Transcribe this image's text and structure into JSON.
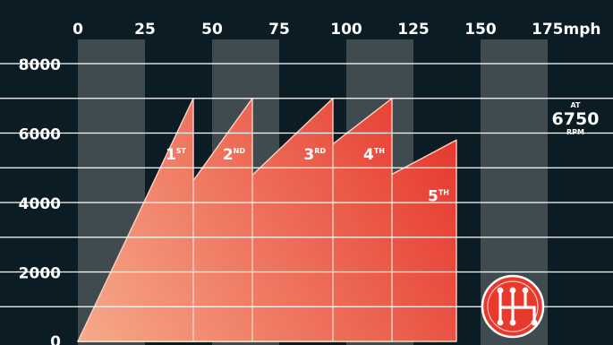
{
  "colors": {
    "background": "#0b1c24",
    "band": "#4a5358",
    "gridline": "#ffffff",
    "fill_light": "#f6a98a",
    "fill_dark": "#e63a2f",
    "text": "#ffffff"
  },
  "chart_data": {
    "type": "area",
    "title": "",
    "xlabel": "",
    "ylabel": "",
    "x_unit": "mph",
    "xlim": [
      0,
      175
    ],
    "ylim": [
      0,
      8000
    ],
    "x_ticks": [
      "0",
      "25",
      "50",
      "75",
      "100",
      "125",
      "150",
      "175mph"
    ],
    "x_tick_values": [
      0,
      25,
      50,
      75,
      100,
      125,
      150,
      175
    ],
    "y_ticks": [
      "8000",
      "6000",
      "4000",
      "2000",
      "0"
    ],
    "y_tick_values": [
      8000,
      6000,
      4000,
      2000,
      0
    ],
    "grid": true,
    "gridline_values": [
      8000,
      7000,
      6000,
      5000,
      4000,
      3000,
      2000,
      1000
    ],
    "bands": [
      [
        0,
        25
      ],
      [
        50,
        75
      ],
      [
        100,
        125
      ],
      [
        150,
        175
      ]
    ],
    "series": [
      {
        "name": "1ST",
        "ordinal": "1",
        "suffix": "ST",
        "x": [
          0,
          43
        ],
        "y": [
          0,
          7000
        ]
      },
      {
        "name": "2ND",
        "ordinal": "2",
        "suffix": "ND",
        "x": [
          0,
          65
        ],
        "y": [
          0,
          7000
        ]
      },
      {
        "name": "3RD",
        "ordinal": "3",
        "suffix": "RD",
        "x": [
          0,
          95
        ],
        "y": [
          0,
          7000
        ]
      },
      {
        "name": "4TH",
        "ordinal": "4",
        "suffix": "TH",
        "x": [
          0,
          117
        ],
        "y": [
          0,
          7000
        ]
      },
      {
        "name": "5TH",
        "ordinal": "5",
        "suffix": "TH",
        "x": [
          0,
          141
        ],
        "y": [
          0,
          5800
        ]
      }
    ],
    "annotations": [
      {
        "text": "AT",
        "role": "small"
      },
      {
        "text": "6750",
        "role": "big"
      },
      {
        "text": "RPM",
        "role": "small"
      }
    ],
    "icon": "gear-shift-icon"
  }
}
